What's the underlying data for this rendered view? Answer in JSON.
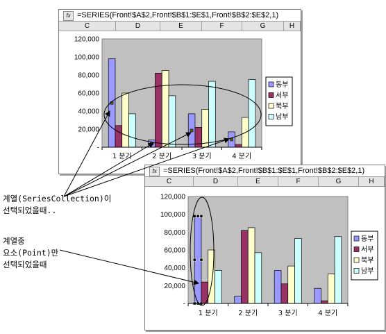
{
  "windows": [
    {
      "formula": "=SERIES(Front!$A$2,Front!$B$1:$E$1,Front!$B$2:$E$2,1)",
      "columns": [
        "C",
        "D",
        "E",
        "F",
        "G",
        "H"
      ]
    },
    {
      "formula": "=SERIES(Front!$A$2,Front!$B$1:$E$1,Front!$B$2:$E$2,1)",
      "columns": [
        "C",
        "D",
        "E",
        "F",
        "G",
        "H"
      ]
    }
  ],
  "fx_icon": "fx-icon",
  "chart_data": [
    {
      "type": "bar",
      "categories": [
        "1 분기",
        "2 분기",
        "3 분기",
        "4 분기"
      ],
      "series": [
        {
          "name": "동부",
          "color": "#9999ff",
          "values": [
            98000,
            8000,
            37000,
            17000
          ]
        },
        {
          "name": "서부",
          "color": "#993366",
          "values": [
            24000,
            82000,
            22000,
            3000
          ]
        },
        {
          "name": "북부",
          "color": "#ffffcc",
          "values": [
            60000,
            85000,
            42000,
            33000
          ]
        },
        {
          "name": "남부",
          "color": "#ccffff",
          "values": [
            37000,
            57000,
            73000,
            75000
          ]
        }
      ],
      "yticks": [
        "-",
        "20,000",
        "40,000",
        "60,000",
        "80,000",
        "100,000",
        "120,000"
      ],
      "ylim": [
        0,
        120000
      ],
      "legend": "right",
      "plot_area_color": "#c0c0c0"
    },
    {
      "type": "bar",
      "categories": [
        "1 분기",
        "2 분기",
        "3 분기",
        "4 분기"
      ],
      "series": [
        {
          "name": "동부",
          "color": "#9999ff",
          "values": [
            98000,
            8000,
            37000,
            17000
          ]
        },
        {
          "name": "서부",
          "color": "#993366",
          "values": [
            24000,
            82000,
            22000,
            3000
          ]
        },
        {
          "name": "북부",
          "color": "#ffffcc",
          "values": [
            60000,
            85000,
            42000,
            33000
          ]
        },
        {
          "name": "남부",
          "color": "#ccffff",
          "values": [
            37000,
            57000,
            73000,
            75000
          ]
        }
      ],
      "yticks": [
        "-",
        "20,000",
        "40,000",
        "60,000",
        "80,000",
        "100,000",
        "120,000"
      ],
      "ylim": [
        0,
        120000
      ],
      "legend": "right",
      "plot_area_color": "#c0c0c0"
    }
  ],
  "annotations": {
    "series_line1": "계열(SeriesCollection)이",
    "series_line2": "선택되었을때..",
    "point_line1": "계열중",
    "point_line2": "요소(Point)만",
    "point_line3": "선택되었을때"
  }
}
